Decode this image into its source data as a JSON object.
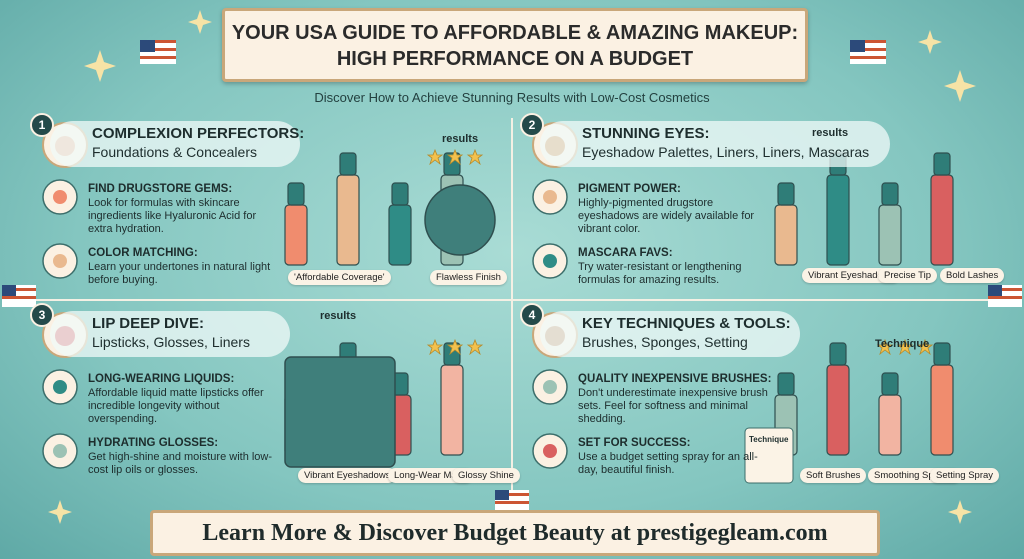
{
  "header": {
    "title_line1": "YOUR USA GUIDE TO AFFORDABLE & AMAZING MAKEUP:",
    "title_line2": "HIGH PERFORMANCE ON A BUDGET",
    "subtitle": "Discover How to Achieve Stunning Results with Low-Cost Cosmetics"
  },
  "sections": [
    {
      "number": "1",
      "heading": "COMPLEXION PERFECTORS:",
      "subheading": "Foundations & Concealers",
      "tag": "results",
      "items": [
        {
          "title": "FIND DRUGSTORE GEMS:",
          "text": "Look for formulas with skincare ingredients like Hyaluronic Acid for extra hydration."
        },
        {
          "title": "COLOR MATCHING:",
          "text": "Learn your undertones in natural light before buying."
        }
      ],
      "labels": [
        "'Affordable Coverage'",
        "Flawless Finish"
      ]
    },
    {
      "number": "2",
      "heading": "STUNNING EYES:",
      "subheading": "Eyeshadow Palettes, Liners,  Liners,  Mascaras",
      "tag": "results",
      "items": [
        {
          "title": "PIGMENT POWER:",
          "text": "Highly-pigmented drugstore eyeshadows are widely available for vibrant color."
        },
        {
          "title": "MASCARA FAVS:",
          "text": "Try water-resistant or lengthening formulas for amazing results."
        }
      ],
      "labels": [
        "Vibrant Eyeshadows",
        "Precise Tip",
        "Bold Lashes"
      ]
    },
    {
      "number": "3",
      "heading": "LIP DEEP DIVE:",
      "subheading": "Lipsticks, Glosses, Liners",
      "tag": "results",
      "items": [
        {
          "title": "LONG-WEARING LIQUIDS:",
          "text": "Affordable liquid matte lipsticks offer incredible longevity without overspending."
        },
        {
          "title": "HYDRATING GLOSSES:",
          "text": "Get high-shine and moisture with low-cost lip oils or glosses."
        }
      ],
      "labels": [
        "Vibrant Eyeshadows",
        "Long-Wear Matte",
        "Glossy Shine"
      ]
    },
    {
      "number": "4",
      "heading": "KEY TECHNIQUES & TOOLS:",
      "subheading": "Brushes, Sponges, Setting",
      "tag": "Technique",
      "items": [
        {
          "title": "QUALITY INEXPENSIVE BRUSHES:",
          "text": "Don't underestimate inexpensive brush sets. Feel for softness and minimal shedding."
        },
        {
          "title": "SET FOR SUCCESS:",
          "text": "Use a budget setting spray for an all-day, beautiful finish."
        }
      ],
      "labels": [
        "Soft Brushes",
        "Smoothing Sponge",
        "Setting Spray"
      ],
      "card": "Technique"
    }
  ],
  "footer": {
    "text": "Learn More & Discover Budget Beauty at prestigegleam.com"
  }
}
